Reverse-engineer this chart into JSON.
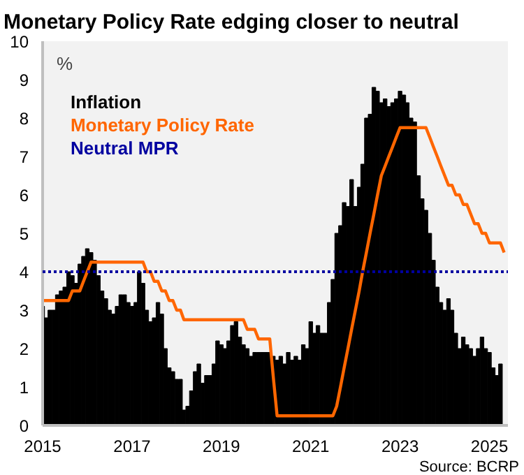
{
  "chart_data": {
    "type": "bar",
    "title": "Monetary Policy Rate edging closer to neutral",
    "ylabel": "%",
    "x": [
      "2015-01",
      "2015-02",
      "2015-03",
      "2015-04",
      "2015-05",
      "2015-06",
      "2015-07",
      "2015-08",
      "2015-09",
      "2015-10",
      "2015-11",
      "2015-12",
      "2016-01",
      "2016-02",
      "2016-03",
      "2016-04",
      "2016-05",
      "2016-06",
      "2016-07",
      "2016-08",
      "2016-09",
      "2016-10",
      "2016-11",
      "2016-12",
      "2017-01",
      "2017-02",
      "2017-03",
      "2017-04",
      "2017-05",
      "2017-06",
      "2017-07",
      "2017-08",
      "2017-09",
      "2017-10",
      "2017-11",
      "2017-12",
      "2018-01",
      "2018-02",
      "2018-03",
      "2018-04",
      "2018-05",
      "2018-06",
      "2018-07",
      "2018-08",
      "2018-09",
      "2018-10",
      "2018-11",
      "2018-12",
      "2019-01",
      "2019-02",
      "2019-03",
      "2019-04",
      "2019-05",
      "2019-06",
      "2019-07",
      "2019-08",
      "2019-09",
      "2019-10",
      "2019-11",
      "2019-12",
      "2020-01",
      "2020-02",
      "2020-03",
      "2020-04",
      "2020-05",
      "2020-06",
      "2020-07",
      "2020-08",
      "2020-09",
      "2020-10",
      "2020-11",
      "2020-12",
      "2021-01",
      "2021-02",
      "2021-03",
      "2021-04",
      "2021-05",
      "2021-06",
      "2021-07",
      "2021-08",
      "2021-09",
      "2021-10",
      "2021-11",
      "2021-12",
      "2022-01",
      "2022-02",
      "2022-03",
      "2022-04",
      "2022-05",
      "2022-06",
      "2022-07",
      "2022-08",
      "2022-09",
      "2022-10",
      "2022-11",
      "2022-12",
      "2023-01",
      "2023-02",
      "2023-03",
      "2023-04",
      "2023-05",
      "2023-06",
      "2023-07",
      "2023-08",
      "2023-09",
      "2023-10",
      "2023-11",
      "2023-12",
      "2024-01",
      "2024-02",
      "2024-03",
      "2024-04",
      "2024-05",
      "2024-06",
      "2024-07",
      "2024-08",
      "2024-09",
      "2024-10",
      "2024-11",
      "2024-12",
      "2025-01",
      "2025-02",
      "2025-03",
      "2025-04",
      "2025-05"
    ],
    "series": [
      {
        "name": "Inflation",
        "color": "#000000",
        "values": [
          3.1,
          2.8,
          3.0,
          3.0,
          3.4,
          3.5,
          3.6,
          4.0,
          3.9,
          3.7,
          4.2,
          4.4,
          4.6,
          4.5,
          4.3,
          3.9,
          3.5,
          3.3,
          3.0,
          2.9,
          3.1,
          3.4,
          3.4,
          3.2,
          3.1,
          3.2,
          4.0,
          3.7,
          3.0,
          2.7,
          2.8,
          3.2,
          2.9,
          2.0,
          1.5,
          1.4,
          1.2,
          1.2,
          0.4,
          0.5,
          0.9,
          1.4,
          1.6,
          1.1,
          1.3,
          1.3,
          1.6,
          2.2,
          2.1,
          2.0,
          2.2,
          2.6,
          2.7,
          2.3,
          2.1,
          2.0,
          1.8,
          1.9,
          1.9,
          1.9,
          1.9,
          1.9,
          1.8,
          1.7,
          1.8,
          1.6,
          1.9,
          1.7,
          1.8,
          1.7,
          2.1,
          2.0,
          2.7,
          2.4,
          2.6,
          2.4,
          2.4,
          3.2,
          3.8,
          5.0,
          5.2,
          5.8,
          5.7,
          6.4,
          5.7,
          6.2,
          6.8,
          8.0,
          8.1,
          8.8,
          8.7,
          8.4,
          8.5,
          8.3,
          8.4,
          8.5,
          8.7,
          8.6,
          8.4,
          8.0,
          7.9,
          6.5,
          5.9,
          5.6,
          5.0,
          4.3,
          3.6,
          3.2,
          3.0,
          3.3,
          3.0,
          2.4,
          2.0,
          2.3,
          2.1,
          2.0,
          1.8,
          2.0,
          2.3,
          2.0,
          1.9,
          1.5,
          1.3,
          1.6,
          null
        ]
      },
      {
        "name": "Monetary Policy Rate",
        "type": "line",
        "color": "#ff6600",
        "values": [
          3.25,
          3.25,
          3.25,
          3.25,
          3.25,
          3.25,
          3.25,
          3.25,
          3.5,
          3.5,
          3.5,
          3.75,
          4.0,
          4.25,
          4.25,
          4.25,
          4.25,
          4.25,
          4.25,
          4.25,
          4.25,
          4.25,
          4.25,
          4.25,
          4.25,
          4.25,
          4.25,
          4.25,
          4.0,
          4.0,
          3.75,
          3.75,
          3.5,
          3.5,
          3.25,
          3.25,
          3.0,
          3.0,
          2.75,
          2.75,
          2.75,
          2.75,
          2.75,
          2.75,
          2.75,
          2.75,
          2.75,
          2.75,
          2.75,
          2.75,
          2.75,
          2.75,
          2.75,
          2.75,
          2.75,
          2.5,
          2.5,
          2.5,
          2.25,
          2.25,
          2.25,
          2.25,
          1.25,
          0.25,
          0.25,
          0.25,
          0.25,
          0.25,
          0.25,
          0.25,
          0.25,
          0.25,
          0.25,
          0.25,
          0.25,
          0.25,
          0.25,
          0.25,
          0.25,
          0.5,
          1.0,
          1.5,
          2.0,
          2.5,
          3.0,
          3.5,
          4.0,
          4.5,
          5.0,
          5.5,
          6.0,
          6.5,
          6.75,
          7.0,
          7.25,
          7.5,
          7.75,
          7.75,
          7.75,
          7.75,
          7.75,
          7.75,
          7.75,
          7.75,
          7.5,
          7.25,
          7.0,
          6.75,
          6.5,
          6.25,
          6.25,
          6.0,
          6.0,
          5.75,
          5.75,
          5.5,
          5.25,
          5.25,
          5.0,
          5.0,
          4.75,
          4.75,
          4.75,
          4.75,
          4.5
        ]
      }
    ],
    "ref_lines": [
      {
        "axis": "y",
        "value": 4,
        "label": "Neutral MPR",
        "color": "#0000a0",
        "line_style": "dotted"
      }
    ],
    "xlim": [
      "2015-01",
      "2025-06"
    ],
    "xticks": [
      "2015",
      "2017",
      "2019",
      "2021",
      "2023",
      "2025"
    ],
    "ylim": [
      0,
      10
    ],
    "yticks": [
      0,
      1,
      2,
      3,
      4,
      5,
      6,
      7,
      8,
      9,
      10
    ],
    "grid": false,
    "legend": "top left",
    "annotations": [
      "Source: BCRP"
    ]
  }
}
